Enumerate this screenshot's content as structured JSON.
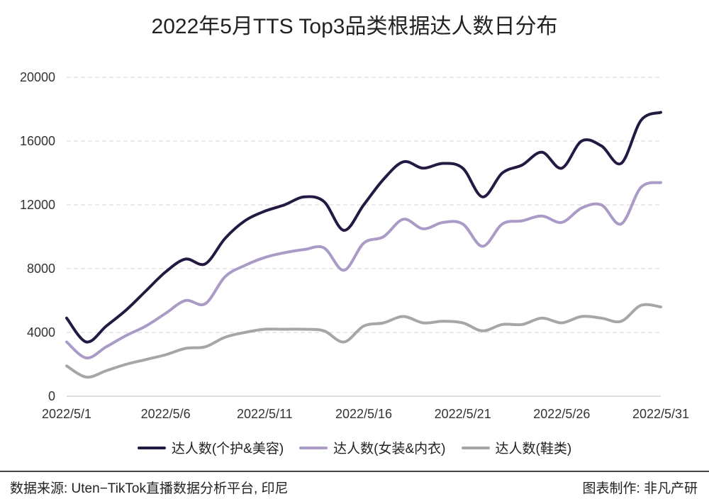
{
  "chart_data": {
    "type": "line",
    "title": "2022年5月TTS Top3品类根据达人数日分布",
    "x": [
      "2022/5/1",
      "2022/5/2",
      "2022/5/3",
      "2022/5/4",
      "2022/5/5",
      "2022/5/6",
      "2022/5/7",
      "2022/5/8",
      "2022/5/9",
      "2022/5/10",
      "2022/5/11",
      "2022/5/12",
      "2022/5/13",
      "2022/5/14",
      "2022/5/15",
      "2022/5/16",
      "2022/5/17",
      "2022/5/18",
      "2022/5/19",
      "2022/5/20",
      "2022/5/21",
      "2022/5/22",
      "2022/5/23",
      "2022/5/24",
      "2022/5/25",
      "2022/5/26",
      "2022/5/27",
      "2022/5/28",
      "2022/5/29",
      "2022/5/30",
      "2022/5/31"
    ],
    "x_tick_labels": [
      "2022/5/1",
      "2022/5/6",
      "2022/5/11",
      "2022/5/16",
      "2022/5/21",
      "2022/5/26",
      "2022/5/31"
    ],
    "x_tick_every": 5,
    "ylim": [
      0,
      20000
    ],
    "y_ticks": [
      0,
      4000,
      8000,
      12000,
      16000,
      20000
    ],
    "grid": true,
    "legend_position": "bottom",
    "series": [
      {
        "name": "达人数(个护&美容)",
        "color": "#231942",
        "values": [
          4900,
          3400,
          4400,
          5400,
          6600,
          7800,
          8600,
          8300,
          9900,
          11000,
          11600,
          12000,
          12500,
          12200,
          10400,
          12000,
          13600,
          14700,
          14300,
          14600,
          14300,
          12500,
          14000,
          14500,
          15300,
          14300,
          16000,
          15700,
          14600,
          17300,
          17800
        ]
      },
      {
        "name": "达人数(女装&内衣)",
        "color": "#a99bc6",
        "values": [
          3400,
          2400,
          3100,
          3800,
          4400,
          5200,
          6000,
          5800,
          7500,
          8200,
          8700,
          9000,
          9200,
          9300,
          7900,
          9600,
          10000,
          11100,
          10500,
          10900,
          10800,
          9400,
          10800,
          11000,
          11300,
          10900,
          11800,
          12000,
          10800,
          13100,
          13400
        ]
      },
      {
        "name": "达人数(鞋类)",
        "color": "#a6a6a6",
        "values": [
          1900,
          1200,
          1600,
          2000,
          2300,
          2600,
          3000,
          3100,
          3700,
          4000,
          4200,
          4200,
          4200,
          4100,
          3400,
          4400,
          4600,
          5000,
          4600,
          4700,
          4600,
          4100,
          4500,
          4500,
          4900,
          4600,
          5000,
          4900,
          4700,
          5700,
          5600
        ]
      }
    ]
  },
  "footer": {
    "source": "数据来源: Uten−TikTok直播数据分析平台, 印尼",
    "credit": "图表制作: 非凡产研"
  }
}
